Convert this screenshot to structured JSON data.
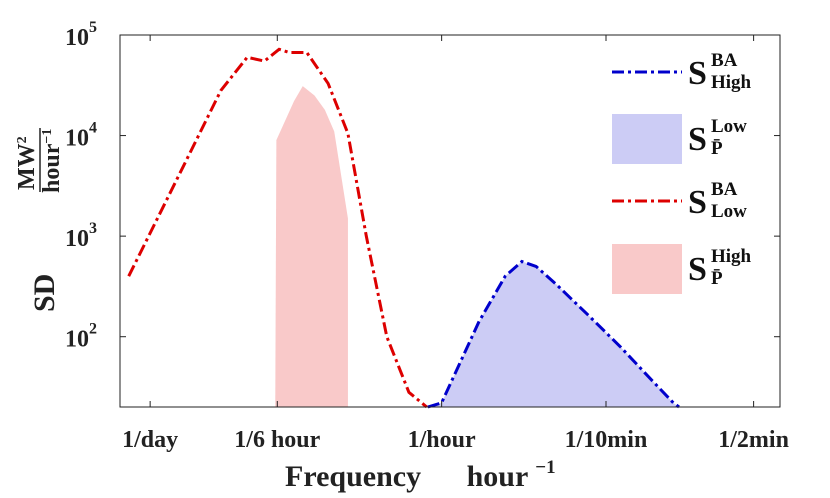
{
  "chart_data": {
    "type": "line",
    "title": "",
    "xlabel": "Frequency",
    "xlabel_unit_base": "hour",
    "xlabel_unit_exp": "−1",
    "ylabel": "SD",
    "ylabel_unit_num": "MW",
    "ylabel_unit_num_exp": "2",
    "ylabel_unit_den": "hour",
    "ylabel_unit_den_exp": "−1",
    "x_scale": "log",
    "y_scale": "log",
    "xlim": [
      0.03,
      40
    ],
    "ylim": [
      20,
      100000
    ],
    "grid": false,
    "legend_position": "right",
    "x_ticks": [
      {
        "value": 0.04167,
        "label": "1/day"
      },
      {
        "value": 0.16667,
        "label": "1/6 hour"
      },
      {
        "value": 1,
        "label": "1/hour"
      },
      {
        "value": 6,
        "label": "1/10min"
      },
      {
        "value": 30,
        "label": "1/2min"
      }
    ],
    "y_ticks": [
      {
        "value": 100,
        "base": "10",
        "exp": "2"
      },
      {
        "value": 1000,
        "base": "10",
        "exp": "3"
      },
      {
        "value": 10000,
        "base": "10",
        "exp": "4"
      },
      {
        "value": 100000,
        "base": "10",
        "exp": "5"
      }
    ],
    "series": [
      {
        "name": "S_High^BA",
        "label_base": "S",
        "label_sup": "BA",
        "label_sub": "High",
        "kind": "line",
        "color": "#0000cc",
        "dash": "dashdot",
        "x": [
          0.86,
          1.0,
          1.5,
          2.0,
          2.4,
          2.8,
          3.5,
          5.0,
          7.0,
          10.0,
          12.5,
          13.3
        ],
        "y": [
          20,
          22,
          140,
          400,
          560,
          500,
          330,
          160,
          80,
          36,
          22,
          20
        ]
      },
      {
        "name": "S_P̄^Low",
        "label_base": "S",
        "label_sup": "Low",
        "label_sub": "P̄",
        "kind": "area",
        "color": "#ccccf5",
        "x": [
          0.86,
          1.0,
          1.5,
          2.0,
          2.4,
          2.8,
          3.5,
          5.0,
          7.0,
          10.0,
          12.5,
          13.3
        ],
        "y": [
          20,
          22,
          140,
          400,
          560,
          500,
          330,
          160,
          80,
          36,
          22,
          20
        ]
      },
      {
        "name": "S_Low^BA",
        "label_base": "S",
        "label_sup": "BA",
        "label_sub": "Low",
        "kind": "line",
        "color": "#dd0000",
        "dash": "dashdot",
        "x": [
          0.033,
          0.06,
          0.09,
          0.12,
          0.145,
          0.17,
          0.19,
          0.23,
          0.29,
          0.36,
          0.44,
          0.55,
          0.7,
          0.85
        ],
        "y": [
          400,
          5000,
          28000,
          60000,
          55000,
          72000,
          67000,
          67000,
          33000,
          10500,
          1000,
          100,
          28,
          20
        ]
      },
      {
        "name": "S_P̄^High",
        "label_base": "S",
        "label_sup": "High",
        "label_sub": "P̄",
        "kind": "area",
        "color": "#f9c9c9",
        "x": [
          0.163,
          0.165,
          0.2,
          0.22,
          0.25,
          0.28,
          0.31,
          0.36
        ],
        "y": [
          20,
          9000,
          22000,
          31000,
          25000,
          18000,
          11000,
          1500
        ]
      }
    ]
  }
}
